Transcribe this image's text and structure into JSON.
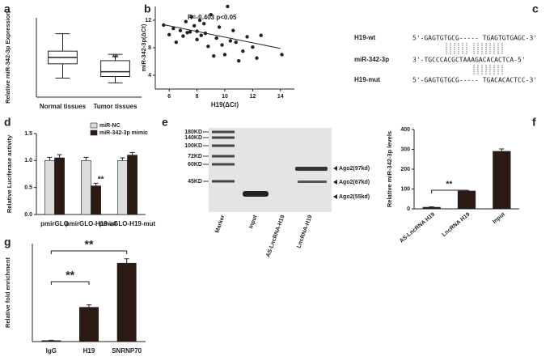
{
  "chart_data": [
    {
      "type": "box",
      "label": "a",
      "ylabel": "Relative miR-342-3p Expression",
      "categories": [
        "Normal tissues",
        "Tumor tissues"
      ],
      "boxes": [
        {
          "min": 0.6,
          "q1": 1.05,
          "median": 1.25,
          "q3": 1.45,
          "max": 2.0
        },
        {
          "min": 0.45,
          "q1": 0.65,
          "median": 0.8,
          "q3": 1.15,
          "max": 1.35
        }
      ],
      "ylim": [
        0,
        2.5
      ],
      "color": "#ffffff",
      "annotations": [
        "**"
      ]
    },
    {
      "type": "scatter",
      "label": "b",
      "title": "R=-0.403 p<0.05",
      "xlabel": "H19(ΔCt)",
      "ylabel": "miR-342-3p(ΔCt)",
      "x": [
        5.6,
        6,
        6.3,
        6.5,
        6.8,
        7,
        7.2,
        7.3,
        7.5,
        7.6,
        7.8,
        8,
        8,
        8.2,
        8.3,
        8.5,
        8.6,
        8.8,
        9,
        9.2,
        9.4,
        9.6,
        9.8,
        10,
        10.2,
        10.4,
        10.6,
        10.8,
        11,
        11.3,
        11.6,
        12,
        12.3,
        12.6,
        14.1
      ],
      "y": [
        11.3,
        9.9,
        10.8,
        8.8,
        10.5,
        9.7,
        11.8,
        10.2,
        10.3,
        12.5,
        11.2,
        9.2,
        10.4,
        12,
        9.8,
        11.5,
        10.1,
        8.2,
        12.8,
        6.8,
        9.4,
        11,
        8.4,
        7,
        14,
        9,
        10.5,
        8.8,
        6.1,
        7.5,
        9.6,
        8.1,
        6.5,
        9.8,
        7
      ],
      "trendline": {
        "x": [
          5.5,
          14
        ],
        "y": [
          11.4,
          7.9
        ]
      },
      "xlim": [
        5,
        15
      ],
      "ylim": [
        2,
        14
      ],
      "xticks": [
        6,
        8,
        10,
        12,
        14
      ],
      "yticks": [
        4,
        8,
        12
      ],
      "color": "#222222"
    },
    {
      "type": "bar",
      "label": "d",
      "ylabel": "Relative Luciferase activity",
      "categories": [
        "pmirGLO",
        "pmirGLO-H19-wt",
        "pmirGLO-H19-mut"
      ],
      "series": [
        {
          "name": "miR-NC",
          "color": "#dcdcdc",
          "values": [
            1.0,
            1.0,
            1.0
          ],
          "errors": [
            0.06,
            0.06,
            0.05
          ]
        },
        {
          "name": "miR-342-3p mimic",
          "color": "#2b1a14",
          "values": [
            1.05,
            0.53,
            1.1
          ],
          "errors": [
            0.06,
            0.05,
            0.05
          ]
        }
      ],
      "ylim": [
        0,
        1.5
      ],
      "yticks": [
        {
          "value": 0,
          "label": "0.0"
        },
        {
          "value": 0.5,
          "label": "0.5"
        },
        {
          "value": 1,
          "label": "1.0"
        },
        {
          "value": 1.5,
          "label": "1.5"
        }
      ],
      "annotations": [
        "**"
      ]
    },
    {
      "type": "bar",
      "label": "f",
      "ylabel": "Relative miR-342-3p levels",
      "categories": [
        "AS-LncRNA H19",
        "LncRNA H19",
        "Input"
      ],
      "values": [
        8,
        90,
        290
      ],
      "errors": [
        2,
        3,
        12
      ],
      "color": "#2b1a14",
      "ylim": [
        0,
        400
      ],
      "yticks": [
        0,
        100,
        200,
        300,
        400
      ],
      "annotations": [
        "**"
      ]
    },
    {
      "type": "bar",
      "label": "g",
      "ylabel": "Relative fold enrichment",
      "categories": [
        "IgG",
        "H19",
        "SNRNP70"
      ],
      "values": [
        1,
        35,
        80
      ],
      "errors": [
        0.3,
        2.5,
        4.5
      ],
      "color": "#2b1a14",
      "ylim": [
        0,
        100
      ],
      "annotations": [
        "**",
        "**"
      ]
    }
  ],
  "sequences": {
    "label": "c",
    "rows": [
      {
        "name": "H19-wt",
        "seq": "5'-GAGTGTGCG----- TGAGTGTGAGC-3'"
      },
      {
        "name": "miR-342-3p",
        "seq": "3'-TGCCCACGCTAAAGACACACTCA-5'"
      },
      {
        "name": "H19-mut",
        "seq": "5'-GAGTGTGCG----- TGACACACTCC-3'"
      }
    ]
  },
  "gel": {
    "label": "e",
    "markers": [
      "180KD",
      "140KD",
      "100KD",
      "72KD",
      "60KD",
      "45KD"
    ],
    "lanes": [
      "Marker",
      "Input",
      "AS-LncRNA-H19",
      "LncRNA-H19"
    ],
    "bands": [
      "Ago2(97kd)",
      "Ago2(67kd)",
      "Ago2(55kd)"
    ]
  }
}
